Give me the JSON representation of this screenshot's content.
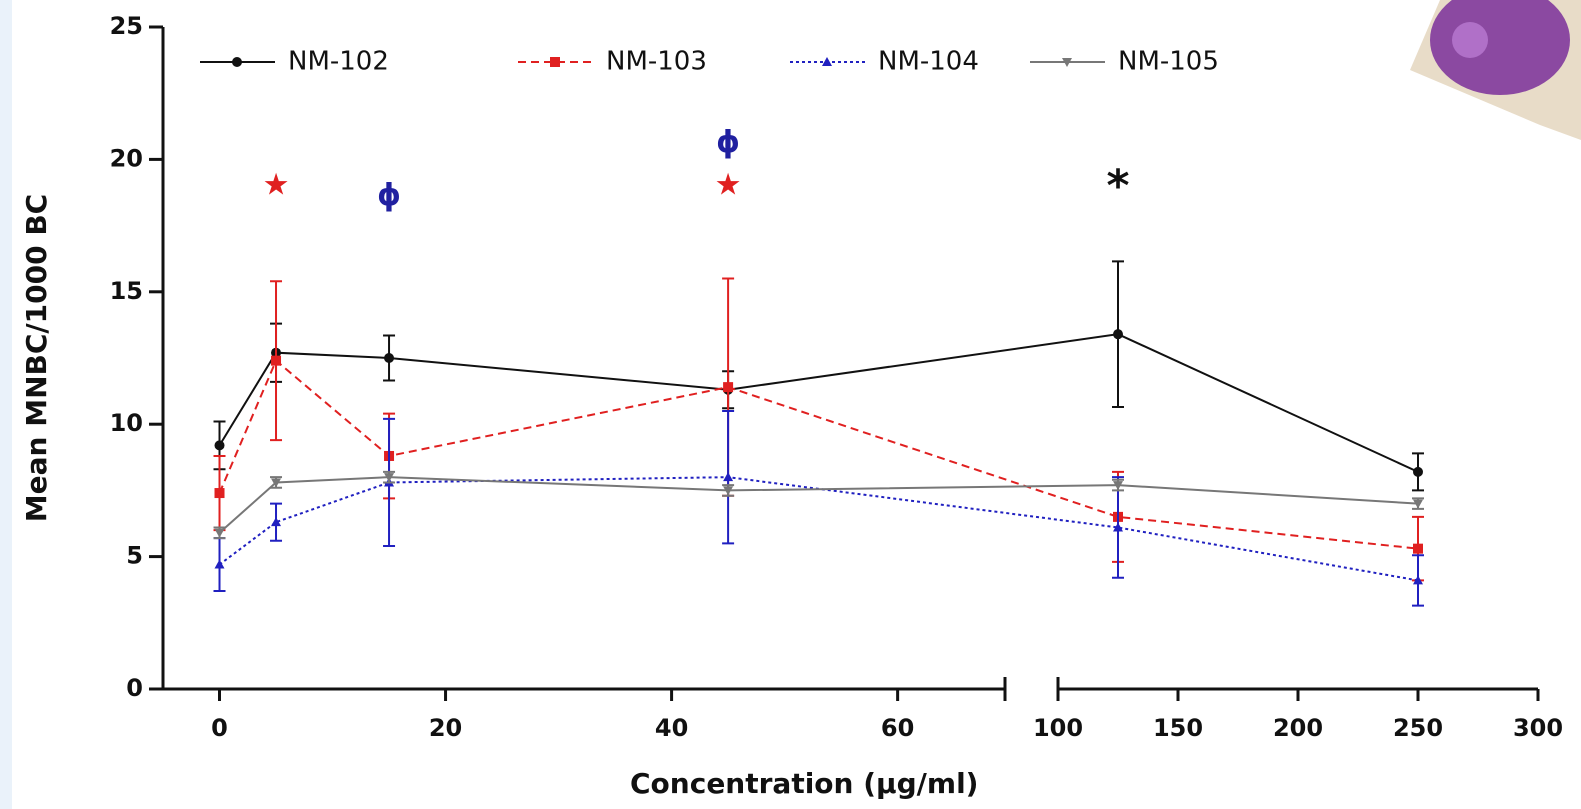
{
  "chart_data": {
    "type": "line",
    "x_label": "Concentration (µg/ml)",
    "y_label": "Mean MNBC/1000 BC",
    "x": [
      0,
      5,
      15,
      45,
      125,
      250
    ],
    "x_segments": [
      {
        "xlim": [
          -5,
          69.5
        ],
        "xticks": [
          0,
          20,
          40,
          60
        ]
      },
      {
        "xlim": [
          100,
          300
        ],
        "xticks": [
          100,
          150,
          200,
          250,
          300
        ]
      }
    ],
    "ylim": [
      0,
      25
    ],
    "yticks": [
      0,
      5,
      10,
      15,
      20,
      25
    ],
    "legend": "top",
    "series": [
      {
        "name": "NM-102",
        "color": "#111111",
        "dash": "none",
        "marker": "circle",
        "values": [
          9.2,
          12.7,
          12.5,
          11.3,
          13.4,
          8.2
        ],
        "errors": [
          0.9,
          1.1,
          0.85,
          0.7,
          2.75,
          0.7
        ]
      },
      {
        "name": "NM-103",
        "color": "#e02020",
        "dash": "8 5",
        "marker": "square",
        "values": [
          7.4,
          12.4,
          8.8,
          11.4,
          6.5,
          5.3
        ],
        "errors": [
          1.4,
          3.0,
          1.6,
          4.1,
          1.7,
          1.2
        ]
      },
      {
        "name": "NM-104",
        "color": "#2020c0",
        "dash": "3 3",
        "marker": "triangle",
        "values": [
          4.7,
          6.3,
          7.8,
          8.0,
          6.1,
          4.1
        ],
        "errors": [
          1.0,
          0.7,
          2.4,
          2.5,
          1.9,
          0.95
        ]
      },
      {
        "name": "NM-105",
        "color": "#777777",
        "dash": "none",
        "marker": "triangle-down",
        "values": [
          5.9,
          7.8,
          8.0,
          7.5,
          7.7,
          7.0
        ],
        "errors": [
          0.2,
          0.2,
          0.2,
          0.2,
          0.2,
          0.2
        ]
      }
    ],
    "annotations": [
      {
        "text": "★",
        "x": 5,
        "y": 19,
        "color": "#e02020"
      },
      {
        "text": "★",
        "x": 45,
        "y": 19,
        "color": "#e02020"
      },
      {
        "text": "ɸ",
        "x": 15,
        "y": 18.6,
        "color": "#2020a0"
      },
      {
        "text": "ɸ",
        "x": 45,
        "y": 20.6,
        "color": "#2020a0"
      },
      {
        "text": "*",
        "x": 125,
        "y": 18.9,
        "color": "#111111"
      }
    ]
  }
}
